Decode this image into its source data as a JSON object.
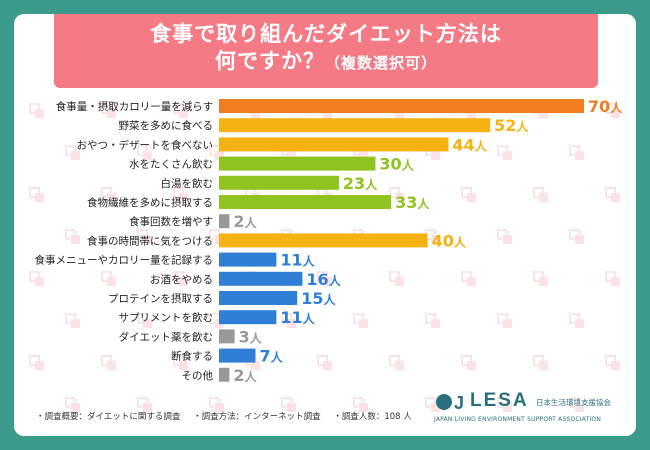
{
  "title": {
    "line1": "食事で取り組んだダイエット方法は",
    "line2": "何ですか？",
    "line2_sub": "（複数選択可）"
  },
  "chart_data": {
    "type": "bar",
    "orientation": "horizontal",
    "unit": "人",
    "categories": [
      "食事量・摂取カロリー量を減らす",
      "野菜を多めに食べる",
      "おやつ・デザートを食べない",
      "水をたくさん飲む",
      "白湯を飲む",
      "食物繊維を多めに摂取する",
      "食事回数を増やす",
      "食事の時間帯に気をつける",
      "食事メニューやカロリー量を記録する",
      "お酒をやめる",
      "プロテインを摂取する",
      "サプリメントを飲む",
      "ダイエット薬を飲む",
      "断食する",
      "その他"
    ],
    "values": [
      70,
      52,
      44,
      30,
      23,
      33,
      2,
      40,
      11,
      16,
      15,
      11,
      3,
      7,
      2
    ],
    "colors": [
      "#f07d1f",
      "#f5b213",
      "#f5b213",
      "#8fc31f",
      "#8fc31f",
      "#8fc31f",
      "#999999",
      "#f5b213",
      "#2f7fd6",
      "#2f7fd6",
      "#2f7fd6",
      "#2f7fd6",
      "#999999",
      "#2f7fd6",
      "#999999"
    ],
    "xlim": [
      0,
      70
    ]
  },
  "footnote": {
    "item1": "・調査概要：ダイエットに関する調査",
    "item2": "・調査方法：インターネット調査",
    "item3": "・調査人数：108 人"
  },
  "logo": {
    "mark": "J",
    "name": "LESA",
    "jp": "日本生活環境支援協会",
    "en": "JAPAN LIVING ENVIRONMENT SUPPORT ASSOCIATION"
  },
  "theme": {
    "background": "#3a9b8a",
    "title_bg": "#f47b86"
  }
}
